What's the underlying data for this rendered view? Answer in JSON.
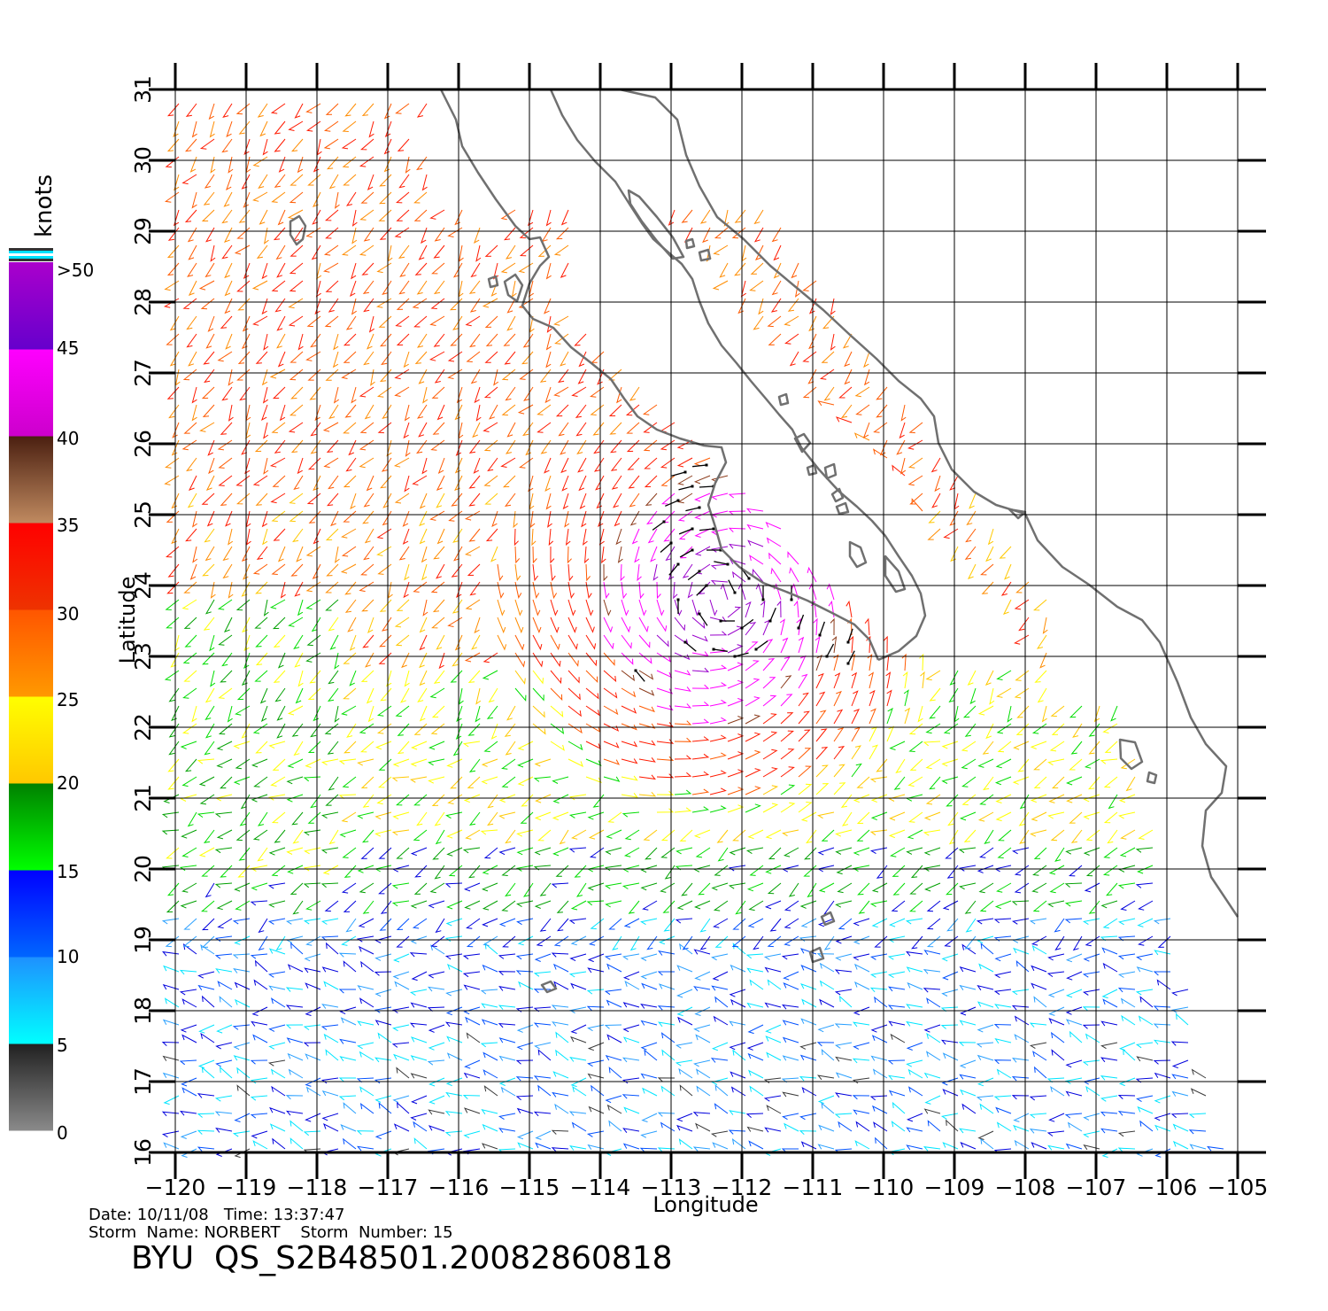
{
  "axes": {
    "xlabel": "Longitude",
    "ylabel": "Latitude",
    "lon_ticks": [
      "-120",
      "-119",
      "-118",
      "-117",
      "-116",
      "-115",
      "-114",
      "-113",
      "-112",
      "-111",
      "-110",
      "-109",
      "-108",
      "-107",
      "-106",
      "-105"
    ],
    "lat_ticks": [
      "16",
      "17",
      "18",
      "19",
      "20",
      "21",
      "22",
      "23",
      "24",
      "25",
      "26",
      "27",
      "28",
      "29",
      "30",
      "31"
    ],
    "lon_range": [
      -120,
      -105
    ],
    "lat_range": [
      16,
      31
    ]
  },
  "colorbar": {
    "unit": "knots",
    "labels": [
      "0",
      "5",
      "10",
      "15",
      "20",
      "25",
      "30",
      "35",
      "40",
      "45",
      ">50"
    ],
    "bands": [
      {
        "from": 0,
        "to": 5,
        "top": "#202020",
        "bottom": "#8a8a8a"
      },
      {
        "from": 5,
        "to": 10,
        "top": "#1e90ff",
        "bottom": "#00ffff"
      },
      {
        "from": 10,
        "to": 15,
        "top": "#0000ff",
        "bottom": "#0066ff"
      },
      {
        "from": 15,
        "to": 20,
        "top": "#008000",
        "bottom": "#00ff00"
      },
      {
        "from": 20,
        "to": 25,
        "top": "#ffff00",
        "bottom": "#ffc800"
      },
      {
        "from": 25,
        "to": 30,
        "top": "#ff5500",
        "bottom": "#ff9900"
      },
      {
        "from": 30,
        "to": 35,
        "top": "#ff0000",
        "bottom": "#ee3300"
      },
      {
        "from": 35,
        "to": 40,
        "top": "#4a1f10",
        "bottom": "#c08a60"
      },
      {
        "from": 40,
        "to": 45,
        "top": "#ff00ff",
        "bottom": "#cc00cc"
      },
      {
        "from": 45,
        "to": 50,
        "top": "#aa00cc",
        "bottom": "#6600cc"
      }
    ]
  },
  "info": {
    "date_line": "Date: 10/11/08   Time: 13:37:47",
    "storm_line": "Storm  Name: NORBERT    Storm  Number: 15",
    "title": "BYU  QS_S2B48501.20082860818"
  },
  "coastline_color": "#707070"
}
